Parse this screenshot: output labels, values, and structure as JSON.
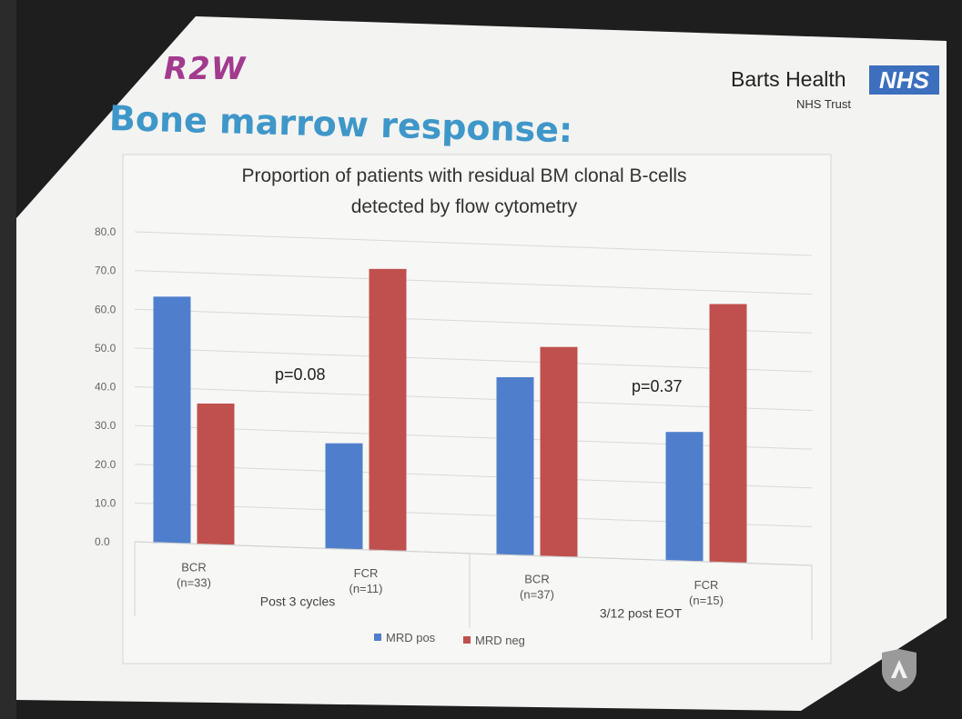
{
  "slide": {
    "logo_text": "R2W",
    "title": "Bone marrow response:",
    "org_name": "Barts Health",
    "nhs_label": "NHS",
    "org_sub": "NHS Trust"
  },
  "chart_data": {
    "type": "bar",
    "title": "Proportion of patients with residual BM clonal B-cells detected by flow cytometry",
    "title_lines": [
      "Proportion of patients with residual BM clonal B-cells",
      "detected by flow cytometry"
    ],
    "categories": [
      {
        "label": "BCR",
        "n": "(n=33)",
        "group": "Post 3 cycles"
      },
      {
        "label": "FCR",
        "n": "(n=11)",
        "group": "Post 3 cycles"
      },
      {
        "label": "BCR",
        "n": "(n=37)",
        "group": "3/12 post EOT"
      },
      {
        "label": "FCR",
        "n": "(n=15)",
        "group": "3/12 post EOT"
      }
    ],
    "groups": [
      "Post 3 cycles",
      "3/12 post EOT"
    ],
    "series": [
      {
        "name": "MRD pos",
        "color": "#4f7fcc",
        "values": [
          63.6,
          27.3,
          45.9,
          33.3
        ]
      },
      {
        "name": "MRD neg",
        "color": "#c0504d",
        "values": [
          36.4,
          72.7,
          54.1,
          66.7
        ]
      }
    ],
    "ylim": [
      0,
      80
    ],
    "yticks": [
      "0.0",
      "10.0",
      "20.0",
      "30.0",
      "40.0",
      "50.0",
      "60.0",
      "70.0",
      "80.0"
    ],
    "annotations": [
      "p=0.08",
      "p=0.37"
    ],
    "grid": true,
    "legend": "bottom"
  }
}
